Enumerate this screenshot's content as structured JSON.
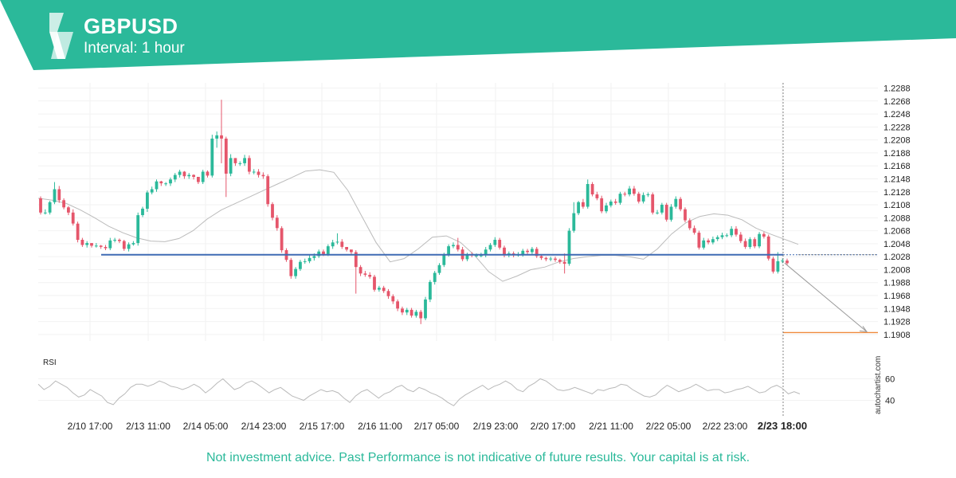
{
  "header": {
    "symbol": "GBPUSD",
    "interval": "Interval: 1 hour",
    "accent_color": "#2bb99a"
  },
  "disclaimer": "Not investment advice. Past Performance is not indicative of future results. Your capital is at risk.",
  "watermark": "autochartist.com",
  "chart_data": [
    {
      "type": "candlestick",
      "title": "GBPUSD",
      "y_ticks": [
        "1.2288",
        "1.2268",
        "1.2248",
        "1.2228",
        "1.2208",
        "1.2188",
        "1.2168",
        "1.2148",
        "1.2128",
        "1.2108",
        "1.2088",
        "1.2068",
        "1.2048",
        "1.2028",
        "1.2008",
        "1.1988",
        "1.1968",
        "1.1948",
        "1.1928",
        "1.1908"
      ],
      "ylim": [
        1.1898,
        1.2296
      ],
      "x_ticks": [
        "2/10 17:00",
        "2/13 11:00",
        "2/14 05:00",
        "2/14 23:00",
        "2/15 17:00",
        "2/16 11:00",
        "2/17 05:00",
        "2/19 23:00",
        "2/20 17:00",
        "2/21 11:00",
        "2/22 05:00",
        "2/22 23:00",
        "2/23 18:00"
      ],
      "highlighted_x_tick": "2/23 18:00",
      "support_level": 1.2031,
      "target_level": 1.1911,
      "close_line_level": 1.2031,
      "moving_average": [
        1.2118,
        1.2115,
        1.211,
        1.21,
        1.2088,
        1.2075,
        1.2065,
        1.2057,
        1.2052,
        1.2051,
        1.2056,
        1.2068,
        1.2086,
        1.21,
        1.211,
        1.212,
        1.213,
        1.214,
        1.215,
        1.216,
        1.2162,
        1.2158,
        1.213,
        1.209,
        1.205,
        1.202,
        1.2025,
        1.204,
        1.2058,
        1.206,
        1.205,
        1.203,
        1.2005,
        1.199,
        1.1998,
        1.2008,
        1.2012,
        1.202,
        1.2025,
        1.2028,
        1.203,
        1.203,
        1.2028,
        1.2024,
        1.204,
        1.2063,
        1.208,
        1.209,
        1.2094,
        1.2092,
        1.2085,
        1.2072,
        1.2063,
        1.2055,
        1.2047
      ],
      "candles_open": [
        1.2118,
        1.2096,
        1.2096,
        1.2112,
        1.2132,
        1.2115,
        1.2104,
        1.2096,
        1.2079,
        1.2054,
        1.2046,
        1.2049,
        1.2045,
        1.2045,
        1.2043,
        1.2041,
        1.2053,
        1.2054,
        1.2052,
        1.204,
        1.2047,
        1.2049,
        1.2092,
        1.2102,
        1.2127,
        1.2132,
        1.2144,
        1.2141,
        1.2141,
        1.2147,
        1.2154,
        1.2159,
        1.2152,
        1.2154,
        1.2151,
        1.2143,
        1.2159,
        1.2153,
        1.221,
        1.2215,
        1.221,
        1.2156,
        1.218,
        1.2172,
        1.2172,
        1.218,
        1.2159,
        1.2159,
        1.2154,
        1.2152,
        1.2109,
        1.2088,
        1.2072,
        1.2038,
        1.2023,
        1.1998,
        1.2009,
        1.202,
        1.2021,
        1.2026,
        1.2029,
        1.2036,
        1.2032,
        1.2044,
        1.205,
        1.2051,
        1.2043,
        1.2039,
        1.2035,
        1.2012,
        1.2002,
        1.2,
        1.1997,
        1.1977,
        1.198,
        1.1975,
        1.1967,
        1.1959,
        1.1948,
        1.1942,
        1.1946,
        1.1937,
        1.1943,
        1.1933,
        1.1962,
        1.1989,
        1.2003,
        1.2015,
        1.2031,
        1.2044,
        1.2046,
        1.2039,
        1.2024,
        1.2031,
        1.203,
        1.203,
        1.203,
        1.2039,
        1.2046,
        1.2054,
        1.2042,
        1.203,
        1.2033,
        1.203,
        1.2031,
        1.2037,
        1.2035,
        1.204,
        1.2029,
        1.2026,
        1.2024,
        1.2025,
        1.2023,
        1.202,
        1.2017,
        1.2068,
        1.2095,
        1.2112,
        1.2105,
        1.214,
        1.2124,
        1.2118,
        1.2098,
        1.2107,
        1.2113,
        1.2111,
        1.2125,
        1.2124,
        1.2133,
        1.2125,
        1.2113,
        1.2123,
        1.2124,
        1.2096,
        1.2096,
        1.2108,
        1.2085,
        1.2105,
        1.2117,
        1.2101,
        1.2084,
        1.2072,
        1.2065,
        1.2042,
        1.2053,
        1.205,
        1.2055,
        1.2058,
        1.2061,
        1.2061,
        1.2071,
        1.2062,
        1.2052,
        1.2043,
        1.2055,
        1.2044,
        1.2063,
        1.2059,
        1.2025,
        1.2005,
        1.2021,
        1.2022
      ],
      "candles_close": [
        1.2096,
        1.2096,
        1.2112,
        1.2132,
        1.2115,
        1.2104,
        1.2096,
        1.2079,
        1.2054,
        1.2046,
        1.2049,
        1.2045,
        1.2045,
        1.2043,
        1.2041,
        1.2053,
        1.2054,
        1.2052,
        1.204,
        1.2047,
        1.2049,
        1.2092,
        1.2102,
        1.2127,
        1.2132,
        1.2144,
        1.2141,
        1.2141,
        1.2147,
        1.2154,
        1.2159,
        1.2152,
        1.2154,
        1.2151,
        1.2143,
        1.2159,
        1.2153,
        1.221,
        1.2215,
        1.221,
        1.2156,
        1.218,
        1.2172,
        1.2172,
        1.218,
        1.2159,
        1.2159,
        1.2154,
        1.2152,
        1.2109,
        1.2088,
        1.2072,
        1.2038,
        1.2023,
        1.1998,
        1.2009,
        1.202,
        1.2021,
        1.2026,
        1.2029,
        1.2036,
        1.2032,
        1.2044,
        1.205,
        1.2051,
        1.2043,
        1.2039,
        1.2035,
        1.2012,
        1.2002,
        1.2,
        1.1997,
        1.1977,
        1.198,
        1.1975,
        1.1967,
        1.1959,
        1.1948,
        1.1942,
        1.1946,
        1.1937,
        1.1943,
        1.1933,
        1.1962,
        1.1989,
        1.2003,
        1.2015,
        1.2031,
        1.2044,
        1.2046,
        1.2039,
        1.2024,
        1.2031,
        1.203,
        1.203,
        1.203,
        1.2039,
        1.2046,
        1.2054,
        1.2042,
        1.203,
        1.2033,
        1.203,
        1.2031,
        1.2037,
        1.2035,
        1.204,
        1.2029,
        1.2026,
        1.2024,
        1.2025,
        1.2023,
        1.202,
        1.2017,
        1.2068,
        1.2095,
        1.2112,
        1.2105,
        1.214,
        1.2124,
        1.2118,
        1.2098,
        1.2107,
        1.2113,
        1.2111,
        1.2125,
        1.2124,
        1.2133,
        1.2125,
        1.2113,
        1.2123,
        1.2124,
        1.2096,
        1.2096,
        1.2108,
        1.2085,
        1.2105,
        1.2117,
        1.2101,
        1.2084,
        1.2072,
        1.2065,
        1.2042,
        1.2053,
        1.205,
        1.2055,
        1.2058,
        1.2061,
        1.2061,
        1.2071,
        1.2062,
        1.2052,
        1.2043,
        1.2055,
        1.2044,
        1.2063,
        1.2059,
        1.2025,
        1.2005,
        1.2021,
        1.2022,
        1.2018
      ],
      "candles_high": [
        1.2121,
        1.2101,
        1.2114,
        1.2143,
        1.2137,
        1.2118,
        1.2106,
        1.2101,
        1.2082,
        1.2057,
        1.2052,
        1.2049,
        1.2049,
        1.2046,
        1.2046,
        1.2057,
        1.2057,
        1.2056,
        1.2054,
        1.205,
        1.2052,
        1.2096,
        1.2105,
        1.213,
        1.2136,
        1.2147,
        1.2145,
        1.2143,
        1.215,
        1.2157,
        1.2162,
        1.216,
        1.2157,
        1.2155,
        1.2147,
        1.2162,
        1.2161,
        1.2216,
        1.2221,
        1.227,
        1.2213,
        1.2186,
        1.218,
        1.2175,
        1.2185,
        1.2184,
        1.2163,
        1.2163,
        1.2158,
        1.2155,
        1.2112,
        1.2092,
        1.2075,
        1.2041,
        1.2026,
        1.2012,
        1.2023,
        1.2025,
        1.203,
        1.2033,
        1.2039,
        1.2039,
        1.2047,
        1.2054,
        1.2064,
        1.2055,
        1.2043,
        1.2038,
        1.2038,
        1.2015,
        1.2006,
        1.2004,
        1.2,
        1.1983,
        1.1983,
        1.1978,
        1.197,
        1.1962,
        1.1951,
        1.1949,
        1.1949,
        1.1946,
        1.1946,
        1.1966,
        1.1992,
        1.2006,
        1.2018,
        1.2034,
        1.2047,
        1.205,
        1.2057,
        1.2043,
        1.2034,
        1.2035,
        1.2033,
        1.2034,
        1.2043,
        1.2049,
        1.2058,
        1.2057,
        1.2045,
        1.2036,
        1.2036,
        1.2035,
        1.204,
        1.204,
        1.2043,
        1.2043,
        1.2032,
        1.2028,
        1.2028,
        1.2028,
        1.2025,
        1.2033,
        1.2072,
        1.2112,
        1.2114,
        1.2117,
        1.2147,
        1.2143,
        1.2128,
        1.2122,
        1.2111,
        1.2116,
        1.2117,
        1.2128,
        1.2128,
        1.2137,
        1.2137,
        1.2128,
        1.2127,
        1.2127,
        1.2127,
        1.21,
        1.2111,
        1.2111,
        1.2109,
        1.2121,
        1.212,
        1.2104,
        1.2087,
        1.2076,
        1.2068,
        1.2057,
        1.2056,
        1.2059,
        1.2061,
        1.2065,
        1.2064,
        1.2075,
        1.2075,
        1.2066,
        1.2056,
        1.2058,
        1.2058,
        1.2066,
        1.2066,
        1.2062,
        1.2028,
        1.2035,
        1.2025,
        1.2025
      ],
      "candles_low": [
        1.2093,
        1.2093,
        1.2093,
        1.2109,
        1.2111,
        1.2101,
        1.2092,
        1.2076,
        1.205,
        1.2043,
        1.2042,
        1.2042,
        1.2042,
        1.204,
        1.2038,
        1.2038,
        1.205,
        1.2049,
        1.2037,
        1.2036,
        1.2045,
        1.2045,
        1.2089,
        1.2097,
        1.2124,
        1.2128,
        1.2137,
        1.2137,
        1.2137,
        1.2143,
        1.215,
        1.2148,
        1.2148,
        1.2147,
        1.214,
        1.214,
        1.215,
        1.215,
        1.2196,
        1.2172,
        1.212,
        1.2152,
        1.2168,
        1.2168,
        1.2168,
        1.2155,
        1.2155,
        1.215,
        1.2148,
        1.2105,
        1.2084,
        1.2068,
        1.2034,
        1.202,
        1.1994,
        1.1994,
        1.2006,
        1.2017,
        1.2018,
        1.2022,
        1.2026,
        1.2029,
        1.2029,
        1.204,
        1.2047,
        1.204,
        1.2036,
        1.2032,
        1.1971,
        1.1998,
        1.1997,
        1.1994,
        1.1974,
        1.1974,
        1.1972,
        1.1963,
        1.1955,
        1.1944,
        1.1938,
        1.1938,
        1.1934,
        1.1934,
        1.1924,
        1.193,
        1.1958,
        1.1985,
        1.2,
        1.2012,
        1.2028,
        1.2041,
        1.2036,
        1.2021,
        1.2021,
        1.2027,
        1.2027,
        1.2027,
        1.2027,
        1.2036,
        1.2043,
        1.2039,
        1.2027,
        1.2027,
        1.2027,
        1.2028,
        1.2028,
        1.2032,
        1.2032,
        1.2026,
        1.2023,
        1.2021,
        1.2021,
        1.202,
        1.2017,
        1.2002,
        1.2014,
        1.2065,
        1.2092,
        1.2102,
        1.2102,
        1.2121,
        1.2115,
        1.2095,
        1.2095,
        1.2104,
        1.2108,
        1.2108,
        1.2121,
        1.2121,
        1.2122,
        1.211,
        1.211,
        1.212,
        1.2093,
        1.2093,
        1.2093,
        1.2082,
        1.2082,
        1.2102,
        1.2098,
        1.2081,
        1.2069,
        1.2062,
        1.2039,
        1.2039,
        1.2047,
        1.2047,
        1.2052,
        1.2055,
        1.2058,
        1.2058,
        1.2059,
        1.2049,
        1.204,
        1.204,
        1.2041,
        1.2041,
        1.2056,
        1.2022,
        1.2002,
        1.2002,
        1.2018,
        1.2015
      ],
      "projection": {
        "from_x": 1.2018,
        "to_level": 1.1911
      },
      "rsi": {
        "label": "RSI",
        "ticks": [
          "60",
          "40"
        ],
        "ylim": [
          30,
          70
        ],
        "values": [
          55,
          50,
          53,
          58,
          55,
          52,
          47,
          43,
          45,
          50,
          47,
          44,
          38,
          36,
          42,
          46,
          52,
          55,
          55,
          53,
          55,
          58,
          56,
          53,
          52,
          50,
          52,
          55,
          52,
          47,
          51,
          56,
          60,
          55,
          50,
          52,
          56,
          58,
          55,
          51,
          47,
          50,
          52,
          48,
          44,
          42,
          40,
          44,
          47,
          50,
          48,
          49,
          47,
          42,
          38,
          44,
          48,
          50,
          46,
          42,
          46,
          48,
          52,
          54,
          50,
          48,
          52,
          50,
          47,
          45,
          42,
          38,
          35,
          41,
          45,
          48,
          51,
          54,
          50,
          53,
          55,
          58,
          55,
          50,
          48,
          53,
          56,
          60,
          58,
          54,
          50,
          49,
          50,
          52,
          50,
          48,
          46,
          50,
          49,
          51,
          52,
          55,
          54,
          50,
          47,
          44,
          43,
          45,
          50,
          54,
          51,
          48,
          50,
          52,
          55,
          52,
          49,
          50,
          50,
          47,
          48,
          50,
          51,
          53,
          50,
          47,
          48,
          52,
          54,
          51,
          46,
          48,
          46
        ]
      }
    }
  ]
}
